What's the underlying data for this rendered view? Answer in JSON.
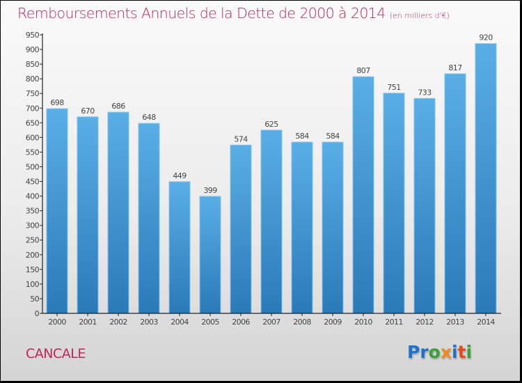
{
  "header": {
    "title": "Remboursements Annuels de la Dette de 2000 à 2014",
    "unit": "(en milliers d'€)"
  },
  "footer": {
    "city": "CANCALE",
    "logo": [
      "P",
      "r",
      "o",
      "x",
      "i",
      "t",
      "i"
    ],
    "logo_colors": [
      "#1e73c8",
      "#1e73c8",
      "#3aa13a",
      "#f08a1a",
      "#1e73c8",
      "#e8461e",
      "#3aa13a"
    ]
  },
  "chart_data": {
    "type": "bar",
    "title": "Remboursements Annuels de la Dette de 2000 à 2014 (en milliers d'€)",
    "xlabel": "",
    "ylabel": "",
    "categories": [
      "2000",
      "2001",
      "2002",
      "2003",
      "2004",
      "2005",
      "2006",
      "2007",
      "2008",
      "2009",
      "2010",
      "2011",
      "2012",
      "2013",
      "2014"
    ],
    "values": [
      698,
      670,
      686,
      648,
      449,
      399,
      574,
      625,
      584,
      584,
      807,
      751,
      733,
      817,
      920
    ],
    "ylim": [
      0,
      950
    ],
    "yticks": [
      0,
      50,
      100,
      150,
      200,
      250,
      300,
      350,
      400,
      450,
      500,
      550,
      600,
      650,
      700,
      750,
      800,
      850,
      900,
      950
    ],
    "grid": false,
    "legend": "none",
    "bar_color_top": "#5aaee6",
    "bar_color_bottom": "#2a7ab8"
  }
}
